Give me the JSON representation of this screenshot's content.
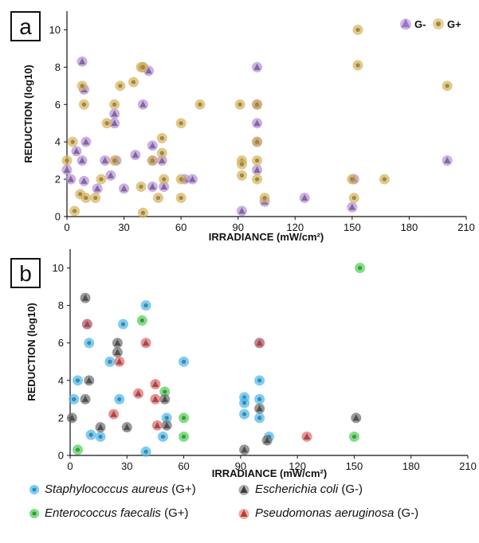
{
  "chart_data": [
    {
      "type": "scatter",
      "panel_label": "a",
      "xlabel": "IRRADIANCE (mW/cm²)",
      "ylabel": "REDUCTION (log10)",
      "xlim": [
        0,
        210
      ],
      "ylim": [
        0,
        11
      ],
      "xticks": [
        0,
        30,
        60,
        90,
        120,
        150,
        180,
        210
      ],
      "yticks": [
        0,
        2,
        4,
        6,
        8,
        10
      ],
      "legend_position": "top-right",
      "series": [
        {
          "name": "G-",
          "marker": "triangle",
          "color": "#b48fd8",
          "points": [
            [
              0,
              2.5
            ],
            [
              2,
              2
            ],
            [
              5,
              3.5
            ],
            [
              8,
              8.3
            ],
            [
              8,
              3
            ],
            [
              9,
              6.8
            ],
            [
              9,
              1.9
            ],
            [
              10,
              4
            ],
            [
              16,
              1.5
            ],
            [
              20,
              3
            ],
            [
              23,
              2.2
            ],
            [
              25,
              5
            ],
            [
              25,
              5.5
            ],
            [
              26,
              3
            ],
            [
              30,
              1.5
            ],
            [
              36,
              3.3
            ],
            [
              40,
              6
            ],
            [
              40,
              8
            ],
            [
              43,
              7.8
            ],
            [
              45,
              3
            ],
            [
              45,
              1.6
            ],
            [
              45,
              3.8
            ],
            [
              50,
              3
            ],
            [
              51,
              1.6
            ],
            [
              62,
              2
            ],
            [
              66,
              2
            ],
            [
              92,
              0.3
            ],
            [
              100,
              8
            ],
            [
              100,
              6
            ],
            [
              100,
              5
            ],
            [
              100,
              4
            ],
            [
              100,
              2.5
            ],
            [
              104,
              0.8
            ],
            [
              125,
              1
            ],
            [
              150,
              0.5
            ],
            [
              151,
              2
            ],
            [
              200,
              3
            ]
          ]
        },
        {
          "name": "G+",
          "marker": "circle",
          "color": "#d4b25a",
          "points": [
            [
              0,
              3
            ],
            [
              3,
              4
            ],
            [
              4,
              0.3
            ],
            [
              7,
              1.2
            ],
            [
              8,
              7
            ],
            [
              9,
              6
            ],
            [
              10,
              1
            ],
            [
              15,
              1
            ],
            [
              18,
              2
            ],
            [
              21,
              5
            ],
            [
              25,
              6
            ],
            [
              25,
              3
            ],
            [
              28,
              7
            ],
            [
              35,
              7.2
            ],
            [
              39,
              8
            ],
            [
              39,
              1.6
            ],
            [
              40,
              0.2
            ],
            [
              40,
              8
            ],
            [
              45,
              3
            ],
            [
              48,
              1
            ],
            [
              50,
              4.2
            ],
            [
              50,
              3.4
            ],
            [
              51,
              2
            ],
            [
              60,
              5
            ],
            [
              60,
              2
            ],
            [
              60,
              1
            ],
            [
              70,
              6
            ],
            [
              91,
              6
            ],
            [
              92,
              3
            ],
            [
              92,
              2.8
            ],
            [
              92,
              2.2
            ],
            [
              100,
              6
            ],
            [
              100,
              4
            ],
            [
              100,
              3
            ],
            [
              100,
              2
            ],
            [
              104,
              1
            ],
            [
              150,
              2
            ],
            [
              151,
              1
            ],
            [
              153,
              10
            ],
            [
              153,
              8.1
            ],
            [
              167,
              2
            ],
            [
              200,
              7
            ]
          ]
        }
      ]
    },
    {
      "type": "scatter",
      "panel_label": "b",
      "xlabel": "IRRADIANCE (mW/cm²)",
      "ylabel": "REDUCTION (log10)",
      "xlim": [
        0,
        210
      ],
      "ylim": [
        0,
        11
      ],
      "xticks": [
        0,
        30,
        60,
        90,
        120,
        150,
        180,
        210
      ],
      "yticks": [
        0,
        2,
        4,
        6,
        8,
        10
      ],
      "legend_position": "bottom",
      "series": [
        {
          "name": "Staphylococcus aureus",
          "group": "(G+)",
          "marker": "circle",
          "color": "#4bb6e8",
          "points": [
            [
              2,
              3
            ],
            [
              4,
              4
            ],
            [
              9,
              7
            ],
            [
              10,
              6
            ],
            [
              11,
              1.1
            ],
            [
              16,
              1
            ],
            [
              21,
              5
            ],
            [
              26,
              3
            ],
            [
              28,
              7
            ],
            [
              40,
              8
            ],
            [
              40,
              0.2
            ],
            [
              49,
              1
            ],
            [
              51,
              2
            ],
            [
              60,
              5
            ],
            [
              92,
              3.1
            ],
            [
              92,
              2.8
            ],
            [
              92,
              2.2
            ],
            [
              100,
              4
            ],
            [
              100,
              3
            ],
            [
              100,
              2
            ],
            [
              100,
              6
            ],
            [
              105,
              1
            ]
          ]
        },
        {
          "name": "Enterococcus faecalis",
          "group": "(G+)",
          "marker": "circle",
          "color": "#4fcd54",
          "points": [
            [
              4,
              0.3
            ],
            [
              38,
              7.2
            ],
            [
              50,
              3.4
            ],
            [
              60,
              2
            ],
            [
              60,
              1
            ],
            [
              150,
              1
            ],
            [
              153,
              10
            ]
          ]
        },
        {
          "name": "Escherichia coli",
          "group": "(G-)",
          "marker": "triangle",
          "color": "#6c6c6c",
          "points": [
            [
              1,
              2
            ],
            [
              8,
              8.4
            ],
            [
              8,
              3
            ],
            [
              10,
              4
            ],
            [
              16,
              1.5
            ],
            [
              25,
              5.5
            ],
            [
              25,
              6
            ],
            [
              30,
              1.5
            ],
            [
              50,
              3
            ],
            [
              51,
              1.6
            ],
            [
              92,
              0.3
            ],
            [
              100,
              2.5
            ],
            [
              104,
              0.8
            ],
            [
              151,
              2
            ]
          ]
        },
        {
          "name": "Pseudomonas aeruginosa",
          "group": "(G-)",
          "marker": "triangle",
          "color": "#e06666",
          "points": [
            [
              9,
              7
            ],
            [
              23,
              2.2
            ],
            [
              26,
              5
            ],
            [
              36,
              3.3
            ],
            [
              40,
              6
            ],
            [
              45,
              3.8
            ],
            [
              45,
              3
            ],
            [
              46,
              1.6
            ],
            [
              100,
              6
            ],
            [
              125,
              1
            ]
          ]
        }
      ]
    }
  ]
}
